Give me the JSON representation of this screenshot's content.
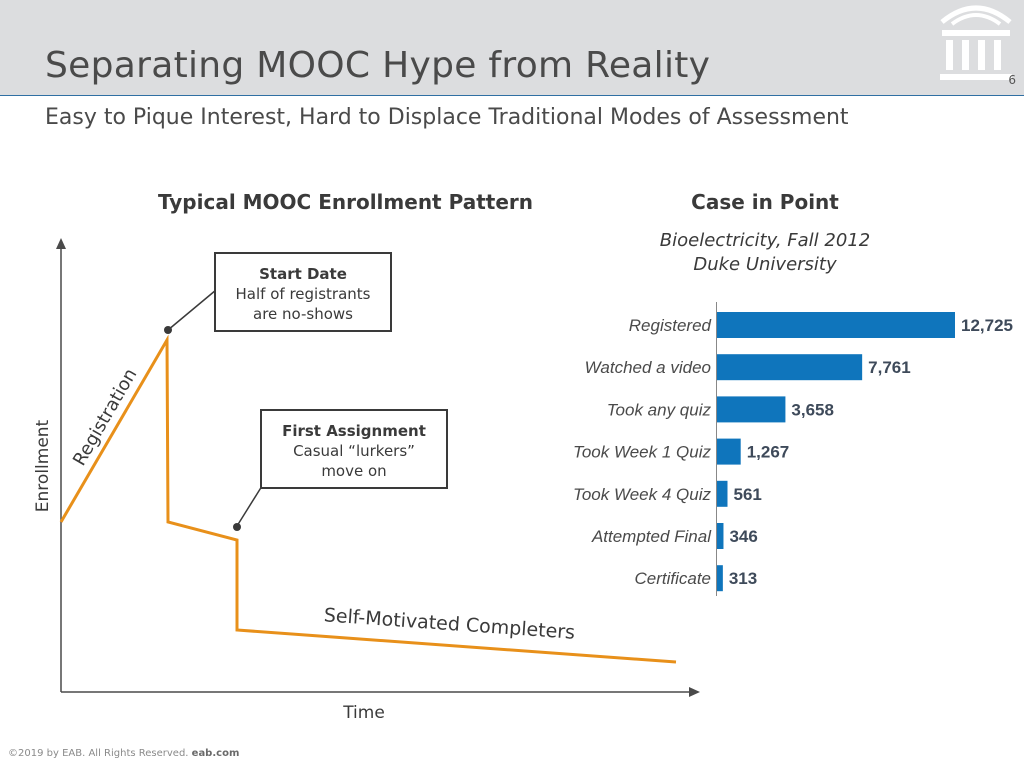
{
  "header": {
    "title": "Separating MOOC Hype from Reality",
    "subtitle": "Easy to Pique Interest, Hard to Displace Traditional Modes of Assessment",
    "page_number": "6"
  },
  "diagram": {
    "title": "Typical MOOC Enrollment Pattern",
    "y_axis_label": "Enrollment",
    "x_axis_label": "Time",
    "phase_registration": "Registration",
    "phase_completers": "Self-Motivated Completers",
    "callouts": [
      {
        "title": "Start Date",
        "line1": "Half of registrants",
        "line2": "are no-shows"
      },
      {
        "title": "First Assignment",
        "line1": "Casual “lurkers”",
        "line2": "move on"
      }
    ],
    "line_color": "#e8901a"
  },
  "case": {
    "title": "Case in Point",
    "course": "Bioelectricity, Fall 2012",
    "institution": "Duke University"
  },
  "chart_data": {
    "type": "bar",
    "orientation": "horizontal",
    "title": "Case in Point",
    "subtitle": "Bioelectricity, Fall 2012 / Duke University",
    "categories": [
      "Registered",
      "Watched a video",
      "Took any quiz",
      "Took Week 1 Quiz",
      "Took Week 4 Quiz",
      "Attempted Final",
      "Certificate"
    ],
    "values": [
      12725,
      7761,
      3658,
      1267,
      561,
      346,
      313
    ],
    "value_labels": [
      "12,725",
      "7,761",
      "3,658",
      "1,267",
      "561",
      "346",
      "313"
    ],
    "xlim": [
      0,
      12725
    ],
    "grid": false,
    "bar_color": "#0f75bc"
  },
  "footer": {
    "copyright": "©2019 by EAB. All Rights Reserved.",
    "site": "eab.com"
  }
}
